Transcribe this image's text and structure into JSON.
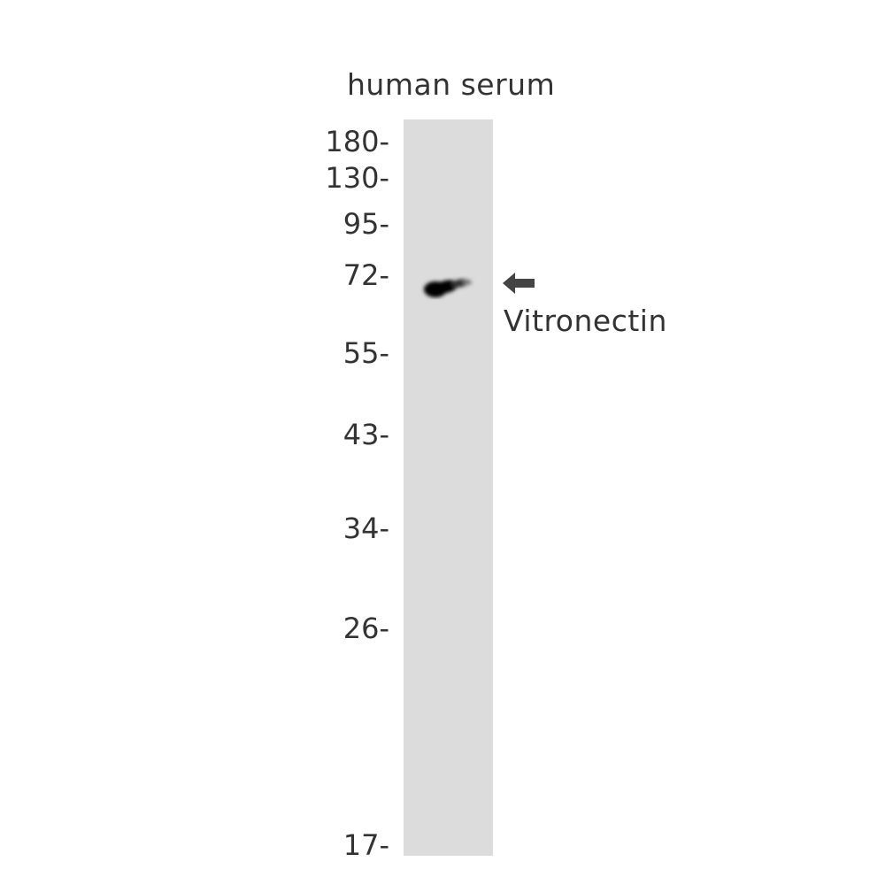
{
  "sample": "human serum",
  "markers_kda": [
    "180-",
    "130-",
    "95-",
    "72-",
    "55-",
    "43-",
    "34-",
    "26-",
    "17-"
  ],
  "band": {
    "protein": "Vitronectin"
  },
  "colors": {
    "lane": "#dcdcdc",
    "band": "#000000",
    "arrow": "#444444",
    "text": "#333333"
  },
  "icons": {
    "arrow": "arrow-left-icon"
  }
}
